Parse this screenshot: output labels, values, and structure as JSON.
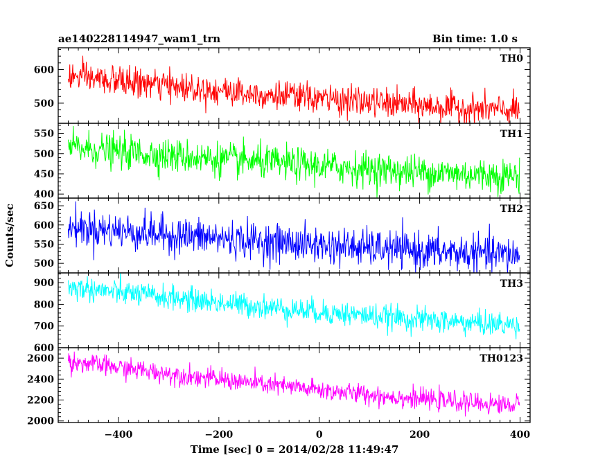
{
  "chart_data": {
    "type": "line",
    "title": "ae140228114947_wam1_trn",
    "bin_time_label": "Bin time: 1.0 s",
    "xlabel": "Time [sec] 0 = 2014/02/28 11:49:47",
    "ylabel": "Counts/sec",
    "xlim": [
      -520,
      420
    ],
    "xticks": [
      -400,
      -200,
      0,
      200,
      400
    ],
    "x_range": [
      -500,
      399
    ],
    "bin_seconds": 1,
    "series": [
      {
        "name": "TH0",
        "color": "#ff0000",
        "ylim": [
          440,
          665
        ],
        "yticks": [
          500,
          600
        ],
        "trend_start": 580,
        "trend_end": 478,
        "noise_sd": 22
      },
      {
        "name": "TH1",
        "color": "#00ff00",
        "ylim": [
          390,
          575
        ],
        "yticks": [
          400,
          450,
          500,
          550
        ],
        "trend_start": 515,
        "trend_end": 445,
        "noise_sd": 21
      },
      {
        "name": "TH2",
        "color": "#0000ff",
        "ylim": [
          475,
          670
        ],
        "yticks": [
          500,
          550,
          600,
          650
        ],
        "trend_start": 595,
        "trend_end": 522,
        "noise_sd": 24
      },
      {
        "name": "TH3",
        "color": "#00ffff",
        "ylim": [
          600,
          945
        ],
        "yticks": [
          600,
          700,
          800,
          900
        ],
        "trend_start": 880,
        "trend_end": 705,
        "noise_sd": 28
      },
      {
        "name": "TH0123",
        "color": "#ff00ff",
        "ylim": [
          1985,
          2700
        ],
        "yticks": [
          2000,
          2200,
          2400,
          2600
        ],
        "trend_start": 2570,
        "trend_end": 2150,
        "noise_sd": 48
      }
    ]
  }
}
